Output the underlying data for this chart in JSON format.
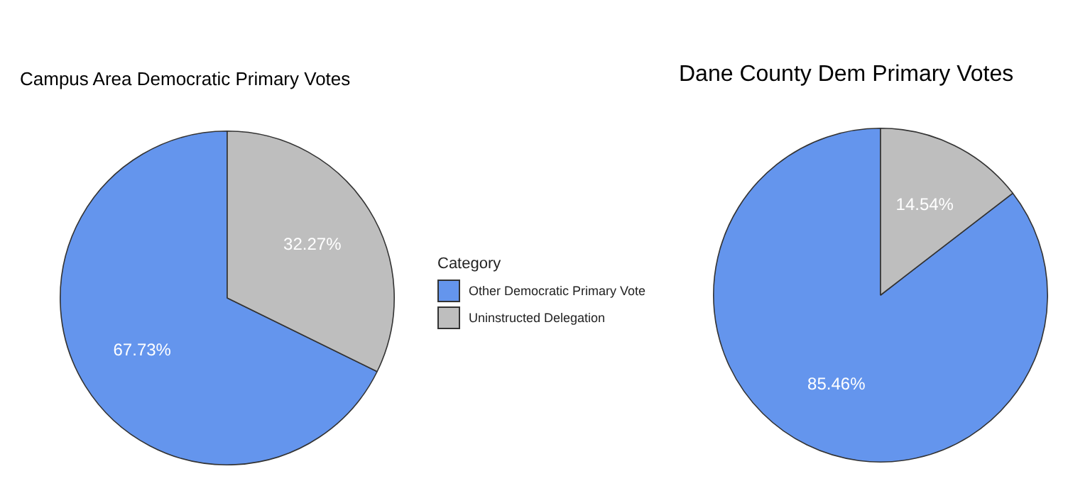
{
  "chart_data": [
    {
      "type": "pie",
      "title": "Campus Area Democratic Primary Votes",
      "legend_title": "Category",
      "legend": "right",
      "categories": [
        "Other Democratic Primary Vote",
        "Uninstructed Delegation"
      ],
      "values": [
        67.73,
        32.27
      ],
      "colors": [
        "#6495ed",
        "#bebebe"
      ],
      "value_labels": [
        "67.73%",
        "32.27%"
      ]
    },
    {
      "type": "pie",
      "title": "Dane County Dem Primary Votes",
      "legend": false,
      "categories": [
        null,
        null
      ],
      "values": [
        85.46,
        14.54
      ],
      "colors": [
        "#6495ed",
        "#bebebe"
      ],
      "value_labels": [
        "85.46%",
        "14.54%"
      ]
    }
  ]
}
